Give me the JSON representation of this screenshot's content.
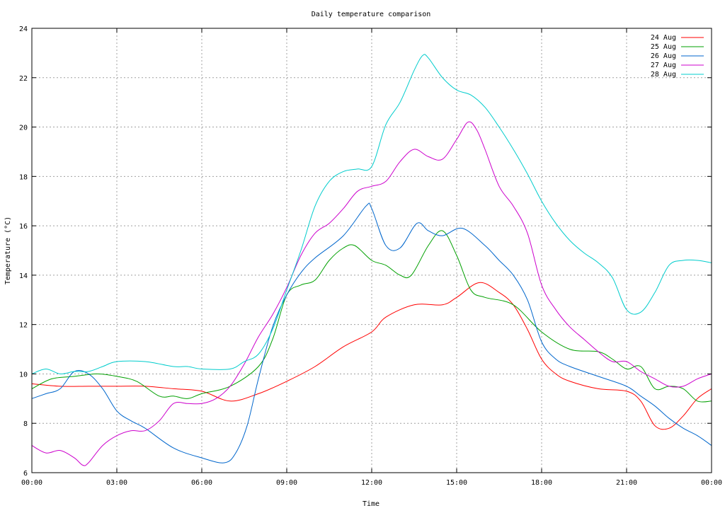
{
  "chart_data": {
    "type": "line",
    "title": "Daily temperature comparison",
    "xlabel": "Time",
    "ylabel": "Temperature (°C)",
    "x_range_hours": [
      0,
      24
    ],
    "ylim": [
      6,
      24
    ],
    "x_ticks": [
      {
        "hour": 0,
        "label": "00:00"
      },
      {
        "hour": 3,
        "label": "03:00"
      },
      {
        "hour": 6,
        "label": "06:00"
      },
      {
        "hour": 9,
        "label": "09:00"
      },
      {
        "hour": 12,
        "label": "12:00"
      },
      {
        "hour": 15,
        "label": "15:00"
      },
      {
        "hour": 18,
        "label": "18:00"
      },
      {
        "hour": 21,
        "label": "21:00"
      },
      {
        "hour": 24,
        "label": "00:00"
      }
    ],
    "y_ticks": [
      6,
      8,
      10,
      12,
      14,
      16,
      18,
      20,
      22,
      24
    ],
    "grid": true,
    "legend_position": "top-right",
    "series": [
      {
        "name": "24 Aug",
        "color": "#ff0000",
        "points": [
          [
            0,
            9.6
          ],
          [
            1,
            9.5
          ],
          [
            2,
            9.5
          ],
          [
            3,
            9.5
          ],
          [
            4,
            9.5
          ],
          [
            5,
            9.4
          ],
          [
            6,
            9.3
          ],
          [
            7,
            8.9
          ],
          [
            8,
            9.2
          ],
          [
            9,
            9.7
          ],
          [
            10,
            10.3
          ],
          [
            11,
            11.1
          ],
          [
            12,
            11.7
          ],
          [
            12.5,
            12.3
          ],
          [
            13.5,
            12.8
          ],
          [
            14.5,
            12.8
          ],
          [
            15,
            13.1
          ],
          [
            15.8,
            13.7
          ],
          [
            16.5,
            13.3
          ],
          [
            17,
            12.8
          ],
          [
            17.5,
            11.8
          ],
          [
            18,
            10.6
          ],
          [
            18.5,
            10
          ],
          [
            19,
            9.7
          ],
          [
            20,
            9.4
          ],
          [
            21,
            9.3
          ],
          [
            21.5,
            8.9
          ],
          [
            22,
            7.9
          ],
          [
            22.5,
            7.8
          ],
          [
            23,
            8.3
          ],
          [
            23.5,
            9
          ],
          [
            24,
            9.4
          ]
        ]
      },
      {
        "name": "25 Aug",
        "color": "#00a000",
        "points": [
          [
            0,
            9.4
          ],
          [
            0.7,
            9.8
          ],
          [
            1.5,
            9.9
          ],
          [
            2.3,
            10
          ],
          [
            3,
            9.9
          ],
          [
            3.7,
            9.7
          ],
          [
            4.5,
            9.1
          ],
          [
            5,
            9.1
          ],
          [
            5.5,
            9
          ],
          [
            6,
            9.2
          ],
          [
            7,
            9.5
          ],
          [
            8,
            10.3
          ],
          [
            8.5,
            11.4
          ],
          [
            9,
            13.2
          ],
          [
            9.5,
            13.6
          ],
          [
            10,
            13.8
          ],
          [
            10.5,
            14.6
          ],
          [
            11,
            15.1
          ],
          [
            11.4,
            15.2
          ],
          [
            12,
            14.6
          ],
          [
            12.5,
            14.4
          ],
          [
            13,
            14
          ],
          [
            13.4,
            14
          ],
          [
            14,
            15.2
          ],
          [
            14.5,
            15.8
          ],
          [
            15,
            14.8
          ],
          [
            15.5,
            13.4
          ],
          [
            16,
            13.1
          ],
          [
            17,
            12.8
          ],
          [
            18,
            11.7
          ],
          [
            19,
            11
          ],
          [
            20,
            10.9
          ],
          [
            20.5,
            10.6
          ],
          [
            21,
            10.2
          ],
          [
            21.5,
            10.3
          ],
          [
            22,
            9.4
          ],
          [
            22.5,
            9.5
          ],
          [
            23,
            9.4
          ],
          [
            23.5,
            8.9
          ],
          [
            24,
            8.9
          ]
        ]
      },
      {
        "name": "26 Aug",
        "color": "#0066cc",
        "points": [
          [
            0,
            9
          ],
          [
            0.5,
            9.2
          ],
          [
            1,
            9.4
          ],
          [
            1.5,
            10.1
          ],
          [
            2,
            10
          ],
          [
            2.5,
            9.4
          ],
          [
            3,
            8.5
          ],
          [
            3.5,
            8.1
          ],
          [
            4,
            7.8
          ],
          [
            5,
            7
          ],
          [
            6,
            6.6
          ],
          [
            6.8,
            6.4
          ],
          [
            7.2,
            6.8
          ],
          [
            7.6,
            7.9
          ],
          [
            8,
            9.8
          ],
          [
            8.5,
            11.9
          ],
          [
            9,
            13.2
          ],
          [
            9.5,
            14.1
          ],
          [
            10,
            14.7
          ],
          [
            11,
            15.6
          ],
          [
            11.8,
            16.8
          ],
          [
            12,
            16.7
          ],
          [
            12.5,
            15.2
          ],
          [
            13,
            15.1
          ],
          [
            13.6,
            16.1
          ],
          [
            14,
            15.8
          ],
          [
            14.5,
            15.6
          ],
          [
            15.2,
            15.9
          ],
          [
            16,
            15.2
          ],
          [
            16.5,
            14.6
          ],
          [
            17,
            14
          ],
          [
            17.5,
            13
          ],
          [
            18,
            11.3
          ],
          [
            18.5,
            10.6
          ],
          [
            19,
            10.3
          ],
          [
            20,
            9.9
          ],
          [
            21,
            9.5
          ],
          [
            21.5,
            9.1
          ],
          [
            22,
            8.7
          ],
          [
            22.5,
            8.2
          ],
          [
            23,
            7.8
          ],
          [
            23.5,
            7.5
          ],
          [
            24,
            7.1
          ]
        ]
      },
      {
        "name": "27 Aug",
        "color": "#cc00cc",
        "points": [
          [
            0,
            7.1
          ],
          [
            0.5,
            6.8
          ],
          [
            1,
            6.9
          ],
          [
            1.5,
            6.6
          ],
          [
            1.8,
            6.3
          ],
          [
            2,
            6.4
          ],
          [
            2.5,
            7.1
          ],
          [
            3,
            7.5
          ],
          [
            3.5,
            7.7
          ],
          [
            4,
            7.7
          ],
          [
            4.5,
            8.1
          ],
          [
            5,
            8.8
          ],
          [
            5.5,
            8.8
          ],
          [
            6,
            8.8
          ],
          [
            6.5,
            9
          ],
          [
            7,
            9.5
          ],
          [
            7.5,
            10.4
          ],
          [
            8,
            11.5
          ],
          [
            8.5,
            12.4
          ],
          [
            9,
            13.5
          ],
          [
            9.5,
            14.8
          ],
          [
            10,
            15.7
          ],
          [
            10.5,
            16.1
          ],
          [
            11,
            16.7
          ],
          [
            11.5,
            17.4
          ],
          [
            12,
            17.6
          ],
          [
            12.5,
            17.8
          ],
          [
            13,
            18.6
          ],
          [
            13.5,
            19.1
          ],
          [
            14,
            18.8
          ],
          [
            14.5,
            18.7
          ],
          [
            15,
            19.5
          ],
          [
            15.4,
            20.2
          ],
          [
            15.7,
            19.9
          ],
          [
            16,
            19.1
          ],
          [
            16.5,
            17.6
          ],
          [
            17,
            16.8
          ],
          [
            17.5,
            15.7
          ],
          [
            18,
            13.6
          ],
          [
            18.5,
            12.6
          ],
          [
            19,
            11.9
          ],
          [
            19.5,
            11.4
          ],
          [
            20,
            10.9
          ],
          [
            20.5,
            10.5
          ],
          [
            21,
            10.5
          ],
          [
            21.5,
            10.1
          ],
          [
            22,
            9.8
          ],
          [
            22.5,
            9.5
          ],
          [
            23,
            9.5
          ],
          [
            23.5,
            9.8
          ],
          [
            24,
            10
          ]
        ]
      },
      {
        "name": "28 Aug",
        "color": "#00cccc",
        "points": [
          [
            0,
            10
          ],
          [
            0.5,
            10.2
          ],
          [
            1,
            10
          ],
          [
            1.5,
            10.1
          ],
          [
            2,
            10.1
          ],
          [
            2.5,
            10.3
          ],
          [
            3,
            10.5
          ],
          [
            4,
            10.5
          ],
          [
            5,
            10.3
          ],
          [
            5.5,
            10.3
          ],
          [
            6,
            10.2
          ],
          [
            7,
            10.2
          ],
          [
            7.5,
            10.5
          ],
          [
            8,
            10.8
          ],
          [
            8.5,
            11.8
          ],
          [
            9,
            13.4
          ],
          [
            9.5,
            15
          ],
          [
            10,
            16.8
          ],
          [
            10.5,
            17.8
          ],
          [
            11,
            18.2
          ],
          [
            11.5,
            18.3
          ],
          [
            12,
            18.4
          ],
          [
            12.5,
            20.1
          ],
          [
            13,
            21
          ],
          [
            13.5,
            22.3
          ],
          [
            13.8,
            22.9
          ],
          [
            14,
            22.8
          ],
          [
            14.5,
            22
          ],
          [
            15,
            21.5
          ],
          [
            15.5,
            21.3
          ],
          [
            16,
            20.8
          ],
          [
            16.5,
            20
          ],
          [
            17,
            19.1
          ],
          [
            17.5,
            18.1
          ],
          [
            18,
            17
          ],
          [
            18.5,
            16.1
          ],
          [
            19,
            15.4
          ],
          [
            19.5,
            14.9
          ],
          [
            20,
            14.5
          ],
          [
            20.5,
            13.9
          ],
          [
            21,
            12.6
          ],
          [
            21.5,
            12.5
          ],
          [
            22,
            13.3
          ],
          [
            22.5,
            14.4
          ],
          [
            23,
            14.6
          ],
          [
            23.5,
            14.6
          ],
          [
            24,
            14.5
          ]
        ]
      }
    ]
  }
}
